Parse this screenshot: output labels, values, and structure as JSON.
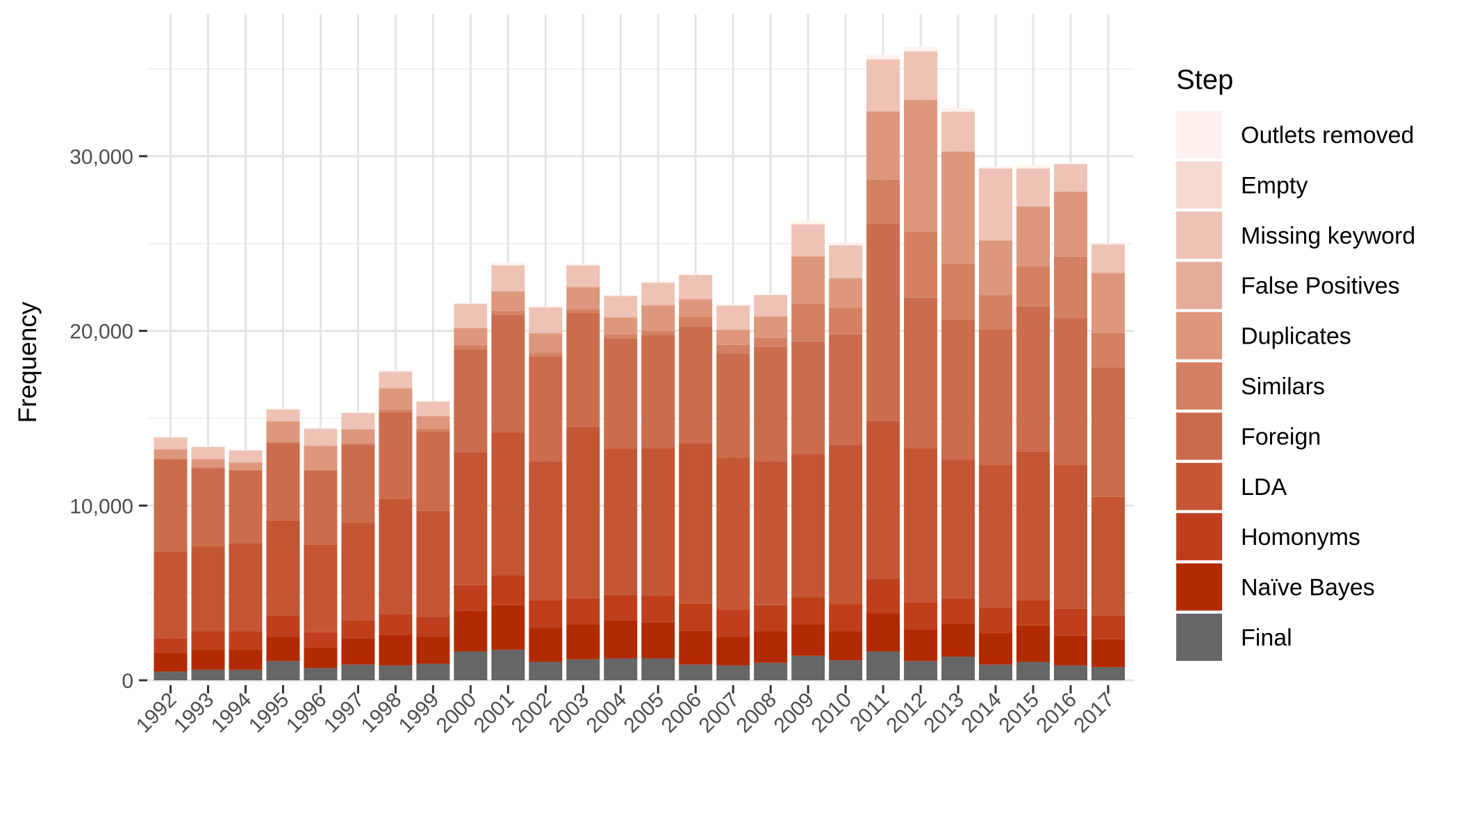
{
  "chart_data": {
    "type": "bar",
    "stacked": true,
    "ylabel": "Frequency",
    "xlabel": "",
    "ylim": [
      0,
      38000
    ],
    "yticks": [
      0,
      10000,
      20000,
      30000
    ],
    "ytick_labels": [
      "0",
      "10,000",
      "20,000",
      "30,000"
    ],
    "grid": true,
    "legend_title": "Step",
    "legend_position": "right",
    "categories": [
      "1992",
      "1993",
      "1994",
      "1995",
      "1996",
      "1997",
      "1998",
      "1999",
      "2000",
      "2001",
      "2002",
      "2003",
      "2004",
      "2005",
      "2006",
      "2007",
      "2008",
      "2009",
      "2010",
      "2011",
      "2012",
      "2013",
      "2014",
      "2015",
      "2016",
      "2017"
    ],
    "series": [
      {
        "name": "Final",
        "color": "#666666",
        "values": [
          500,
          600,
          600,
          1100,
          700,
          900,
          850,
          950,
          1650,
          1750,
          1050,
          1200,
          1250,
          1250,
          900,
          850,
          1000,
          1400,
          1150,
          1650,
          1100,
          1350,
          900,
          1050,
          850,
          750
        ]
      },
      {
        "name": "Naïve Bayes",
        "color": "#b22a03",
        "values": [
          1050,
          1150,
          1150,
          1400,
          1200,
          1500,
          1750,
          1550,
          2350,
          2550,
          2000,
          2000,
          2200,
          2050,
          1950,
          1650,
          1800,
          1800,
          1650,
          2200,
          1800,
          1900,
          1800,
          2100,
          1700,
          1600
        ]
      },
      {
        "name": "Homonyms",
        "color": "#bf3f1c",
        "values": [
          850,
          1050,
          1050,
          1200,
          850,
          1050,
          1200,
          1150,
          1450,
          1700,
          1550,
          1500,
          1450,
          1550,
          1550,
          1550,
          1500,
          1550,
          1550,
          1950,
          1550,
          1450,
          1450,
          1450,
          1550,
          1350
        ]
      },
      {
        "name": "LDA",
        "color": "#c55635",
        "values": [
          4950,
          4900,
          5050,
          5450,
          5000,
          5550,
          6600,
          6050,
          7600,
          8200,
          7950,
          9800,
          8350,
          8450,
          9150,
          8700,
          8250,
          8200,
          9100,
          9050,
          8850,
          7950,
          8200,
          8500,
          8250,
          6800
        ]
      },
      {
        "name": "Foreign",
        "color": "#cb6c4d",
        "values": [
          5300,
          4450,
          4150,
          4450,
          4250,
          4500,
          4950,
          4550,
          5900,
          6700,
          6000,
          6500,
          6300,
          6450,
          6700,
          5950,
          6550,
          6450,
          6350,
          11300,
          8600,
          8000,
          7750,
          8300,
          8400,
          7400
        ]
      },
      {
        "name": "Similars",
        "color": "#d48163",
        "values": [
          50,
          50,
          50,
          50,
          50,
          50,
          150,
          150,
          250,
          250,
          200,
          250,
          250,
          250,
          550,
          500,
          500,
          2150,
          1550,
          2500,
          3800,
          3200,
          1950,
          2300,
          3500,
          2000
        ]
      },
      {
        "name": "Duplicates",
        "color": "#dd977d",
        "values": [
          500,
          450,
          400,
          1150,
          1350,
          800,
          1200,
          700,
          950,
          1100,
          1100,
          1250,
          950,
          1450,
          1000,
          850,
          1200,
          2700,
          1650,
          3900,
          7500,
          6400,
          3100,
          3400,
          3700,
          3400
        ]
      },
      {
        "name": "False Positives",
        "color": "#e5ad98",
        "values": [
          50,
          50,
          50,
          50,
          50,
          50,
          50,
          50,
          50,
          50,
          50,
          50,
          50,
          50,
          50,
          50,
          50,
          50,
          50,
          50,
          50,
          50,
          50,
          50,
          50,
          50
        ]
      },
      {
        "name": "Missing keyword",
        "color": "#eec3b5",
        "values": [
          650,
          650,
          650,
          650,
          950,
          900,
          900,
          800,
          1350,
          1450,
          1450,
          1200,
          1200,
          1250,
          1350,
          1350,
          1200,
          1800,
          1850,
          2950,
          2750,
          2250,
          4100,
          2150,
          1550,
          1600
        ]
      },
      {
        "name": "Empty",
        "color": "#f6dad2",
        "values": [
          0,
          0,
          0,
          0,
          0,
          0,
          50,
          0,
          0,
          0,
          0,
          0,
          0,
          0,
          0,
          0,
          0,
          0,
          0,
          0,
          0,
          0,
          0,
          0,
          0,
          0
        ]
      },
      {
        "name": "Outlets removed",
        "color": "#fff1ee",
        "values": [
          50,
          50,
          50,
          50,
          50,
          50,
          50,
          50,
          50,
          150,
          50,
          100,
          50,
          50,
          50,
          50,
          50,
          200,
          150,
          250,
          250,
          200,
          100,
          200,
          50,
          50
        ]
      }
    ]
  }
}
